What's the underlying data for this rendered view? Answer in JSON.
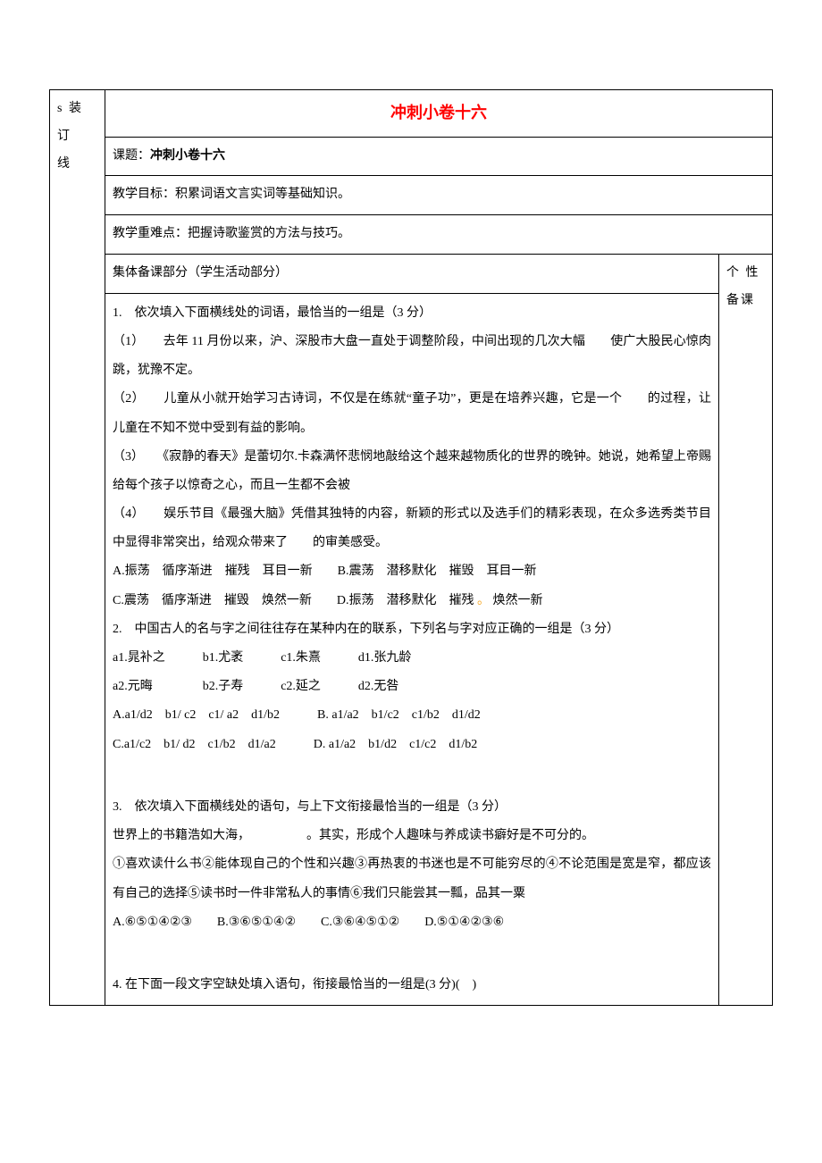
{
  "colors": {
    "text": "#000000",
    "title": "#ff0000",
    "border": "#000000",
    "highlight": "#f5a623",
    "background": "#ffffff"
  },
  "typography": {
    "base_fontsize_pt": 10.5,
    "title_fontsize_pt": 14,
    "font_family": "SimSun",
    "line_height": 2.3
  },
  "leftCol": {
    "line1": "s 装 订",
    "line2": "线"
  },
  "title": "冲刺小卷十六",
  "lesson": {
    "label": "课题：",
    "name": "冲刺小卷十六"
  },
  "objective": "教学目标：积累词语文言实词等基础知识。",
  "keypoint": "教学重难点：把握诗歌鉴赏的方法与技巧。",
  "groupPrep": "集体备课部分（学生活动部分）",
  "personalPrep": "个 性 备课",
  "q1": {
    "stem": "1.　依次填入下面横线处的词语，最恰当的一组是（3 分）",
    "p1": "（1）　　去年 11 月份以来，沪、深股市大盘一直处于调整阶段，中间出现的几次大幅　　使广大股民心惊肉跳，犹豫不定。",
    "p2": "（2）　　儿童从小就开始学习古诗词，不仅是在练就“童子功”，更是在培养兴趣，它是一个　　的过程，让儿童在不知不觉中受到有益的影响。",
    "p3": "（3）　　《寂静的春天》是蕾切尔.卡森满怀悲悯地敲给这个越来越物质化的世界的晚钟。她说，她希望上帝赐给每个孩子以惊奇之心，而且一生都不会被　　",
    "p4": "（4）　　娱乐节目《最强大脑》凭借其独特的内容，新颖的形式以及选手们的精彩表现，在众多选秀类节目中显得非常突出，给观众带来了　　的审美感受。",
    "optA": "A.振荡　循序渐进　摧残　耳目一新　　B.震荡　潜移默化　摧毁　耳目一新",
    "optC": "C.震荡　循序渐进　摧毁　焕然一新　　D.振荡　潜移默化　摧残 ",
    "optC_tail": " 焕然一新"
  },
  "q2": {
    "stem": "2.　中国古人的名与字之间往往存在某种内在的联系，下列名与字对应正确的一组是（3 分）",
    "row1_a": "a1.晁补之　　　",
    "row1_b": "b1.尤袤　　　c1.朱熹　　　d1.张九龄",
    "row2": "a2.元晦　　　　b2.子寿　　　c2.延之　　　d2.无咎",
    "optA": "A.a1/d2　b1/ c2　c1/ a2　d1/b2　　　B. a1/a2　b1/c2　c1/b2　d1/d2",
    "optC": "C.a1/c2　b1/ d2　c1/b2　d1/a2　　　D. a1/a2　b1/d2　c1/c2　d1/b2"
  },
  "q3": {
    "stem": "3.　依次填入下面横线处的语句，与上下文衔接最恰当的一组是（3 分）",
    "p1": "世界上的书籍浩如大海，　　　　　。其实，形成个人趣味与养成读书癖好是不可分的。",
    "p2": "①喜欢读什么书②能体现自己的个性和兴趣③再热衷的书迷也是不可能穷尽的④不论范围是宽是窄，都应该有自己的选择⑤读书时一件非常私人的事情⑥我们只能尝其一瓢，品其一粟",
    "opts": "A.⑥⑤①④②③　　B.③⑥⑤①④②　　C.③⑥④⑤①②　　D.⑤①④②③⑥"
  },
  "q4": {
    "stem": "4. 在下面一段文字空缺处填入语句，衔接最恰当的一组是(3 分)(　)"
  }
}
